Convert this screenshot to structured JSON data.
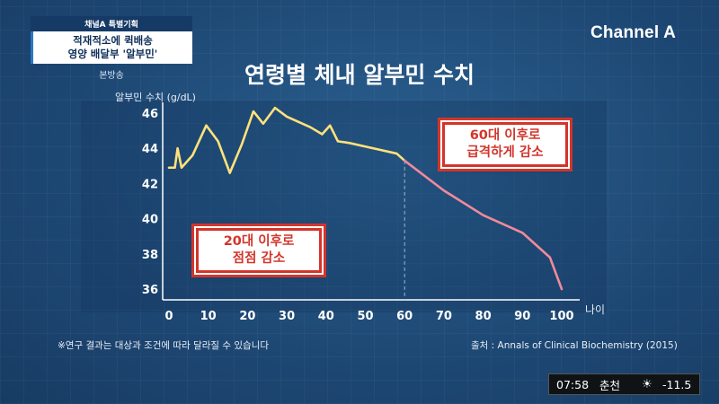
{
  "caption": {
    "top": "채널A 특별기획",
    "line1": "적재적소에 퀵배송",
    "line2": "영양 배달부 '알부민'",
    "sub": "본방송"
  },
  "logo": "Channel A",
  "title": "연령별 체내 알부민 수치",
  "footnote": "※연구 결과는 대상과 조건에 따라 달라질 수 있습니다",
  "source": "출처 : Annals of Clinical Biochemistry (2015)",
  "stamps": {
    "early": [
      "20대 이후로",
      "점점 감소"
    ],
    "late": [
      "60대 이후로",
      "급격하게 감소"
    ]
  },
  "weather": {
    "time": "07:58",
    "city": "춘천",
    "icon": "sun-icon",
    "temp": "-11.5"
  },
  "colors": {
    "line_before_60": "#ffe27a",
    "line_after_60": "#f08a9a",
    "stamp_red": "#d2352b"
  },
  "chart_data": {
    "type": "line",
    "title": "연령별 체내 알부민 수치",
    "ylabel": "알부민 수치 (g/dL)",
    "xlabel": "나이",
    "xlim": [
      0,
      100
    ],
    "ylim": [
      36,
      46
    ],
    "xticks": [
      0,
      10,
      20,
      30,
      40,
      50,
      60,
      70,
      80,
      90,
      100
    ],
    "yticks": [
      36,
      38,
      40,
      42,
      44,
      46
    ],
    "divider_x": 60,
    "series": [
      {
        "color": "#ffe27a",
        "x": [
          0,
          1.5,
          2.2,
          3.2,
          6,
          9.5,
          12.5,
          15.5,
          18.5,
          21.5,
          24,
          27,
          30,
          33,
          36,
          39,
          41,
          43,
          46,
          50,
          54,
          58,
          60
        ],
        "y": [
          42.9,
          42.9,
          44.0,
          42.9,
          43.6,
          45.3,
          44.4,
          42.6,
          44.2,
          46.1,
          45.4,
          46.3,
          45.8,
          45.5,
          45.2,
          44.8,
          45.3,
          44.4,
          44.3,
          44.1,
          43.9,
          43.7,
          43.3
        ]
      },
      {
        "color": "#f08a9a",
        "x": [
          60,
          70,
          80,
          90,
          97,
          100
        ],
        "y": [
          43.3,
          41.6,
          40.2,
          39.2,
          37.8,
          36.0
        ]
      }
    ]
  }
}
